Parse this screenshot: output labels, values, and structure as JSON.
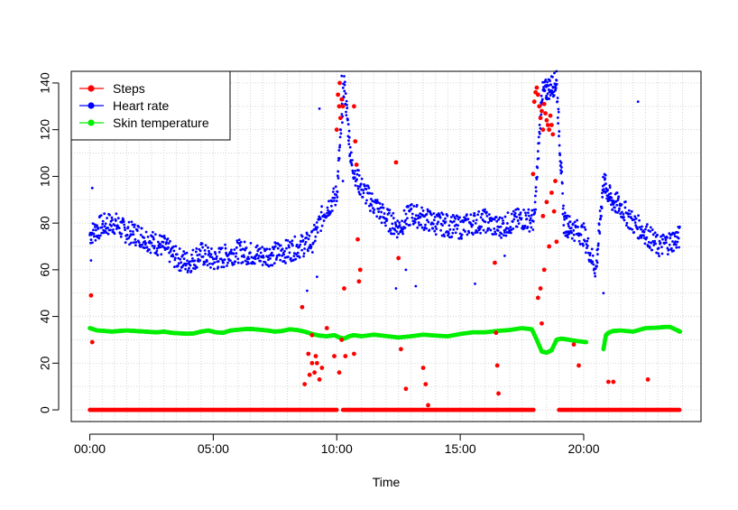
{
  "chart_data": {
    "type": "scatter",
    "xlabel": "Time",
    "ylabel": "",
    "xlim": [
      -0.75,
      24.75
    ],
    "ylim": [
      -5,
      145
    ],
    "x_unit": "hours",
    "x_ticks": [
      0,
      5,
      10,
      15,
      20
    ],
    "x_tick_labels": [
      "00:00",
      "05:00",
      "10:00",
      "15:00",
      "20:00"
    ],
    "y_ticks": [
      0,
      20,
      40,
      60,
      80,
      100,
      120,
      140
    ],
    "y_tick_labels": [
      "0",
      "20",
      "40",
      "60",
      "80",
      "100",
      "120",
      "140"
    ],
    "grid": true,
    "legend_position": "top-left",
    "series": [
      {
        "name": "Steps",
        "color": "#ff0000",
        "baseline": {
          "value": 0,
          "segments": [
            [
              0,
              10.0
            ],
            [
              10.25,
              18.0
            ],
            [
              19.0,
              23.9
            ]
          ]
        },
        "x": [
          0.05,
          0.1,
          8.6,
          8.7,
          8.85,
          8.9,
          9.0,
          9.1,
          9.2,
          9.3,
          9.4,
          9.0,
          9.15,
          9.6,
          9.9,
          10.0,
          10.05,
          10.1,
          10.12,
          10.15,
          10.2,
          10.25,
          10.3,
          10.35,
          10.1,
          10.2,
          10.7,
          10.75,
          10.8,
          10.85,
          10.9,
          10.95,
          10.7,
          12.4,
          12.5,
          12.6,
          12.8,
          13.5,
          13.6,
          13.7,
          16.4,
          16.45,
          16.5,
          16.55,
          17.95,
          18.0,
          18.05,
          18.1,
          18.15,
          18.2,
          18.25,
          18.3,
          18.35,
          18.4,
          18.45,
          18.5,
          18.55,
          18.6,
          18.65,
          18.7,
          18.75,
          18.8,
          18.85,
          18.3,
          18.5,
          18.7,
          18.6,
          18.35,
          18.25,
          18.15,
          18.4,
          18.9,
          19.6,
          19.8,
          21.0,
          21.2,
          22.6
        ],
        "y": [
          49,
          29,
          44,
          11,
          24,
          15,
          20,
          16,
          20,
          13,
          18,
          32,
          23,
          35,
          23,
          120,
          135,
          130,
          140,
          125,
          133,
          130,
          52,
          23,
          16,
          30,
          130,
          115,
          105,
          73,
          55,
          60,
          24,
          106,
          65,
          26,
          9,
          18,
          11,
          2,
          63,
          33,
          19,
          7,
          101,
          132,
          136,
          138,
          135,
          130,
          125,
          128,
          120,
          131,
          127,
          124,
          122,
          120,
          126,
          122,
          118,
          85,
          98,
          37,
          89,
          93,
          70,
          83,
          52,
          48,
          60,
          72,
          28,
          19,
          12,
          12,
          13
        ],
        "point_size": "large"
      },
      {
        "name": "Heart rate",
        "color": "#0000ff",
        "x": [
          0,
          0.5,
          1.0,
          1.5,
          2.0,
          2.5,
          3.0,
          3.5,
          4.0,
          4.5,
          5.0,
          5.5,
          6.0,
          6.5,
          7.0,
          7.5,
          8.0,
          8.5,
          9.0,
          9.5,
          10.0,
          10.3,
          10.6,
          11.0,
          11.5,
          12.0,
          12.5,
          13.0,
          13.5,
          14.0,
          14.5,
          15.0,
          15.5,
          16.0,
          16.5,
          17.0,
          17.5,
          18.0,
          18.3,
          18.6,
          18.9,
          19.2,
          19.5,
          20.0,
          20.5,
          20.8,
          21.1,
          21.5,
          22.0,
          22.5,
          23.0,
          23.5,
          23.9
        ],
        "y": [
          75,
          79,
          80,
          76,
          75,
          72,
          70,
          65,
          63,
          67,
          64,
          66,
          68,
          67,
          66,
          67,
          68,
          70,
          72,
          85,
          92,
          140,
          105,
          95,
          88,
          82,
          78,
          84,
          82,
          80,
          79,
          78,
          80,
          81,
          78,
          80,
          82,
          81,
          135,
          138,
          140,
          80,
          78,
          75,
          60,
          98,
          90,
          87,
          80,
          76,
          70,
          72,
          74
        ],
        "scatter_spread": 5,
        "outliers": {
          "x": [
            0.1,
            0.05,
            8.8,
            9.2,
            9.3,
            10.2,
            10.25,
            12.4,
            12.8,
            13.2,
            15.6,
            16.8,
            20.8,
            22.2,
            18.9
          ],
          "y": [
            95,
            64,
            51,
            57,
            129,
            143,
            98,
            52,
            60,
            53,
            54,
            66,
            50,
            132,
            145
          ]
        },
        "point_size": "small"
      },
      {
        "name": "Skin temperature",
        "color": "#00ee00",
        "x": [
          0.0,
          0.3,
          0.6,
          0.9,
          1.2,
          1.5,
          1.8,
          2.1,
          2.4,
          2.7,
          3.0,
          3.3,
          3.6,
          3.9,
          4.2,
          4.5,
          4.8,
          5.1,
          5.4,
          5.7,
          6.0,
          6.3,
          6.6,
          6.9,
          7.2,
          7.5,
          7.8,
          8.1,
          8.4,
          8.7,
          9.0,
          9.3,
          9.6,
          9.9,
          10.1,
          10.3,
          10.5,
          10.7,
          11.0,
          11.5,
          12.0,
          12.5,
          13.0,
          13.5,
          14.0,
          14.5,
          15.0,
          15.5,
          16.0,
          16.5,
          17.0,
          17.5,
          17.9,
          18.1,
          18.3,
          18.5,
          18.7,
          18.9,
          19.1,
          19.4,
          19.7,
          20.1
        ],
        "y": [
          35,
          34,
          33.8,
          33.5,
          33.8,
          34,
          33.8,
          33.6,
          33.4,
          33.2,
          33.5,
          33,
          32.8,
          32.6,
          32.7,
          33.5,
          34,
          33.2,
          33,
          34,
          34.3,
          34.6,
          34.6,
          34.3,
          34,
          33.5,
          33.8,
          34.5,
          34.2,
          33.5,
          32.5,
          31.8,
          31.5,
          32,
          31,
          30.5,
          31.5,
          32,
          31.5,
          32.2,
          31.6,
          31,
          31.5,
          32.2,
          31.8,
          31.5,
          32.5,
          33.2,
          33.2,
          33.8,
          34.2,
          35,
          34.5,
          30,
          25,
          24.5,
          25.5,
          30,
          30.5,
          30,
          29.5,
          29
        ],
        "x2": [
          20.8,
          20.9,
          21.0,
          21.2,
          21.5,
          22.0,
          22.5,
          23.0,
          23.3,
          23.5,
          23.8,
          23.9
        ],
        "y2": [
          26,
          32,
          33,
          33.8,
          34,
          33.5,
          35,
          35.2,
          35.5,
          35.5,
          34,
          33.5
        ],
        "point_size": "large"
      }
    ]
  }
}
